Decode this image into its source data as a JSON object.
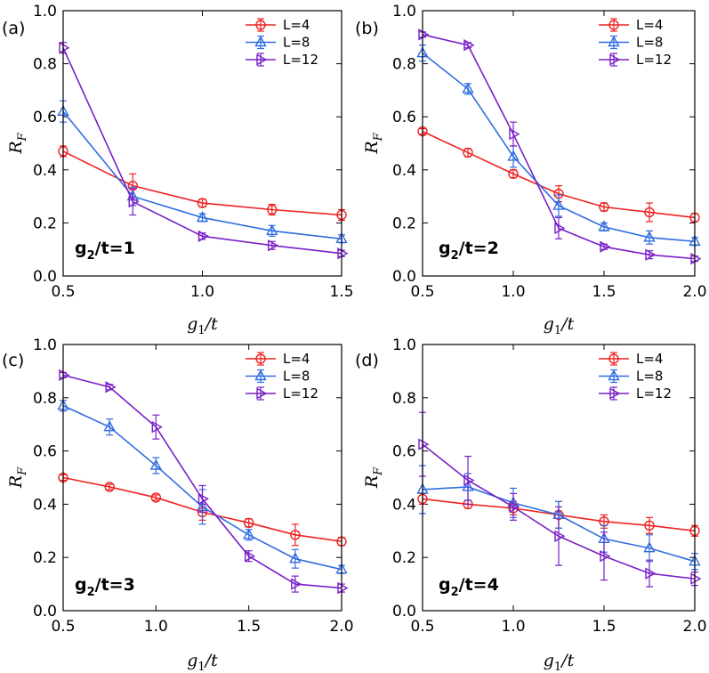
{
  "chart_data": [
    {
      "type": "line",
      "panel_label": "(a)",
      "annotation": {
        "main": "g",
        "sub": "2",
        "rest": "/t=1"
      },
      "xlabel": {
        "main": "g",
        "sub": "1",
        "rest": "/t"
      },
      "ylabel": {
        "main": "R",
        "sub": "F"
      },
      "xlim": [
        0.5,
        1.5
      ],
      "ylim": [
        0.0,
        1.0
      ],
      "xticks": [
        "0.5",
        "1.0",
        "1.5"
      ],
      "yticks": [
        "0.0",
        "0.2",
        "0.4",
        "0.6",
        "0.8",
        "1.0"
      ],
      "legend_position": "top-right",
      "x": [
        0.5,
        0.75,
        1.0,
        1.25,
        1.5
      ],
      "series": [
        {
          "name": "L=4",
          "color": "#ee2222",
          "marker": "circle",
          "values": [
            0.47,
            0.34,
            0.275,
            0.25,
            0.23
          ],
          "errors": [
            0.02,
            0.045,
            0.015,
            0.02,
            0.02
          ]
        },
        {
          "name": "L=8",
          "color": "#2f6de1",
          "marker": "triangle-up",
          "values": [
            0.62,
            0.3,
            0.22,
            0.17,
            0.14
          ],
          "errors": [
            0.04,
            0.035,
            0.015,
            0.02,
            0.015
          ]
        },
        {
          "name": "L=12",
          "color": "#7a1fc8",
          "marker": "triangle-right",
          "values": [
            0.86,
            0.28,
            0.15,
            0.115,
            0.085
          ],
          "errors": [
            0.02,
            0.05,
            0.012,
            0.015,
            0.012
          ]
        }
      ]
    },
    {
      "type": "line",
      "panel_label": "(b)",
      "annotation": {
        "main": "g",
        "sub": "2",
        "rest": "/t=2"
      },
      "xlabel": {
        "main": "g",
        "sub": "1",
        "rest": "/t"
      },
      "ylabel": {
        "main": "R",
        "sub": "F"
      },
      "xlim": [
        0.5,
        2.0
      ],
      "ylim": [
        0.0,
        1.0
      ],
      "xticks": [
        "0.5",
        "1.0",
        "1.5",
        "2.0"
      ],
      "yticks": [
        "0.0",
        "0.2",
        "0.4",
        "0.6",
        "0.8",
        "1.0"
      ],
      "legend_position": "top-right",
      "x": [
        0.5,
        0.75,
        1.0,
        1.25,
        1.5,
        1.75,
        2.0
      ],
      "series": [
        {
          "name": "L=4",
          "color": "#ee2222",
          "marker": "circle",
          "values": [
            0.545,
            0.465,
            0.385,
            0.31,
            0.26,
            0.24,
            0.22
          ],
          "errors": [
            0.01,
            0.015,
            0.015,
            0.03,
            0.015,
            0.035,
            0.015
          ]
        },
        {
          "name": "L=8",
          "color": "#2f6de1",
          "marker": "triangle-up",
          "values": [
            0.84,
            0.705,
            0.45,
            0.265,
            0.185,
            0.145,
            0.13
          ],
          "errors": [
            0.03,
            0.02,
            0.04,
            0.04,
            0.015,
            0.025,
            0.015
          ]
        },
        {
          "name": "L=12",
          "color": "#7a1fc8",
          "marker": "triangle-right",
          "values": [
            0.91,
            0.87,
            0.535,
            0.18,
            0.11,
            0.08,
            0.065
          ],
          "errors": [
            0.01,
            0.01,
            0.045,
            0.04,
            0.01,
            0.015,
            0.01
          ]
        }
      ]
    },
    {
      "type": "line",
      "panel_label": "(c)",
      "annotation": {
        "main": "g",
        "sub": "2",
        "rest": "/t=3"
      },
      "xlabel": {
        "main": "g",
        "sub": "1",
        "rest": "/t"
      },
      "ylabel": {
        "main": "R",
        "sub": "F"
      },
      "xlim": [
        0.5,
        2.0
      ],
      "ylim": [
        0.0,
        1.0
      ],
      "xticks": [
        "0.5",
        "1.0",
        "1.5",
        "2.0"
      ],
      "yticks": [
        "0.0",
        "0.2",
        "0.4",
        "0.6",
        "0.8",
        "1.0"
      ],
      "legend_position": "top-right",
      "x": [
        0.5,
        0.75,
        1.0,
        1.25,
        1.5,
        1.75,
        2.0
      ],
      "series": [
        {
          "name": "L=4",
          "color": "#ee2222",
          "marker": "circle",
          "values": [
            0.5,
            0.465,
            0.425,
            0.37,
            0.33,
            0.285,
            0.26
          ],
          "errors": [
            0.01,
            0.01,
            0.01,
            0.03,
            0.015,
            0.04,
            0.015
          ]
        },
        {
          "name": "L=8",
          "color": "#2f6de1",
          "marker": "triangle-up",
          "values": [
            0.77,
            0.69,
            0.545,
            0.39,
            0.285,
            0.195,
            0.155
          ],
          "errors": [
            0.02,
            0.03,
            0.03,
            0.065,
            0.02,
            0.035,
            0.015
          ]
        },
        {
          "name": "L=12",
          "color": "#7a1fc8",
          "marker": "triangle-right",
          "values": [
            0.885,
            0.84,
            0.69,
            0.42,
            0.205,
            0.1,
            0.085
          ],
          "errors": [
            0.01,
            0.01,
            0.045,
            0.05,
            0.02,
            0.03,
            0.015
          ]
        }
      ]
    },
    {
      "type": "line",
      "panel_label": "(d)",
      "annotation": {
        "main": "g",
        "sub": "2",
        "rest": "/t=4"
      },
      "xlabel": {
        "main": "g",
        "sub": "1",
        "rest": "/t"
      },
      "ylabel": {
        "main": "R",
        "sub": "F"
      },
      "xlim": [
        0.5,
        2.0
      ],
      "ylim": [
        0.0,
        1.0
      ],
      "xticks": [
        "0.5",
        "1.0",
        "1.5",
        "2.0"
      ],
      "yticks": [
        "0.0",
        "0.2",
        "0.4",
        "0.6",
        "0.8",
        "1.0"
      ],
      "legend_position": "top-right",
      "x": [
        0.5,
        0.75,
        1.0,
        1.25,
        1.5,
        1.75,
        2.0
      ],
      "series": [
        {
          "name": "L=4",
          "color": "#ee2222",
          "marker": "circle",
          "values": [
            0.42,
            0.4,
            0.385,
            0.36,
            0.335,
            0.32,
            0.3
          ],
          "errors": [
            0.02,
            0.015,
            0.025,
            0.05,
            0.025,
            0.03,
            0.02
          ]
        },
        {
          "name": "L=8",
          "color": "#2f6de1",
          "marker": "triangle-up",
          "values": [
            0.455,
            0.465,
            0.405,
            0.36,
            0.27,
            0.235,
            0.185
          ],
          "errors": [
            0.09,
            0.05,
            0.055,
            0.05,
            0.05,
            0.05,
            0.03
          ]
        },
        {
          "name": "L=12",
          "color": "#7a1fc8",
          "marker": "triangle-right",
          "values": [
            0.625,
            0.49,
            0.39,
            0.28,
            0.205,
            0.14,
            0.12
          ],
          "errors": [
            0.12,
            0.09,
            0.05,
            0.11,
            0.09,
            0.05,
            0.025
          ]
        }
      ]
    }
  ]
}
